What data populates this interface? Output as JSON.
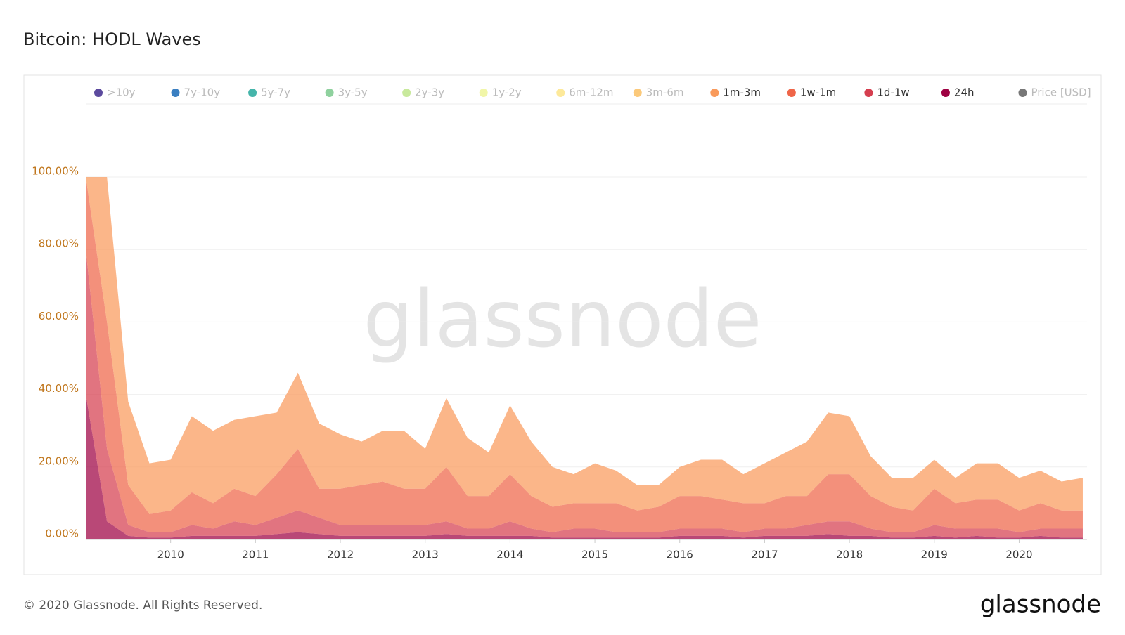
{
  "chart_data": {
    "type": "stacked_area",
    "title": "Bitcoin: HODL Waves",
    "x": [
      2009.0,
      2009.25,
      2009.5,
      2009.75,
      2010.0,
      2010.25,
      2010.5,
      2010.75,
      2011.0,
      2011.25,
      2011.5,
      2011.75,
      2012.0,
      2012.25,
      2012.5,
      2012.75,
      2013.0,
      2013.25,
      2013.5,
      2013.75,
      2014.0,
      2014.25,
      2014.5,
      2014.75,
      2015.0,
      2015.25,
      2015.5,
      2015.75,
      2016.0,
      2016.25,
      2016.5,
      2016.75,
      2017.0,
      2017.25,
      2017.5,
      2017.75,
      2018.0,
      2018.25,
      2018.5,
      2018.75,
      2019.0,
      2019.25,
      2019.5,
      2019.75,
      2020.0,
      2020.25,
      2020.5,
      2020.75
    ],
    "series": [
      {
        "name": ">10y",
        "color": "#5c4a9e",
        "visible": false
      },
      {
        "name": "7y-10y",
        "color": "#3a7fc1",
        "visible": false
      },
      {
        "name": "5y-7y",
        "color": "#45b5aa",
        "visible": false
      },
      {
        "name": "3y-5y",
        "color": "#8fd19e",
        "visible": false
      },
      {
        "name": "2y-3y",
        "color": "#c8e99c",
        "visible": false
      },
      {
        "name": "1y-2y",
        "color": "#f1f6a8",
        "visible": false
      },
      {
        "name": "6m-12m",
        "color": "#fde99a",
        "visible": false
      },
      {
        "name": "3m-6m",
        "color": "#fbc97a",
        "visible": false
      },
      {
        "name": "1m-3m",
        "color": "#f99a5b",
        "values": [
          0,
          40,
          23,
          14,
          14,
          21,
          20,
          19,
          22,
          17,
          21,
          18,
          15,
          12,
          14,
          16,
          11,
          19,
          16,
          12,
          19,
          15,
          11,
          8,
          11,
          9,
          7,
          6,
          8,
          10,
          11,
          8,
          11,
          12,
          15,
          17,
          16,
          11,
          8,
          9,
          8,
          7,
          10,
          10,
          9,
          9,
          8,
          9
        ]
      },
      {
        "name": "1w-1m",
        "color": "#ef6548",
        "values": [
          20,
          35,
          11,
          5,
          6,
          9,
          7,
          9,
          8,
          12,
          17,
          8,
          10,
          11,
          12,
          10,
          10,
          15,
          9,
          9,
          13,
          9,
          7,
          7,
          7,
          8,
          6,
          7,
          9,
          9,
          8,
          8,
          7,
          9,
          8,
          13,
          13,
          9,
          7,
          6,
          10,
          7,
          8,
          8,
          6,
          7,
          5,
          5
        ]
      },
      {
        "name": "1d-1w",
        "color": "#d53e4f",
        "values": [
          40,
          20,
          3,
          1.5,
          1.5,
          3,
          2,
          4,
          3,
          4.5,
          6,
          4.5,
          3,
          3,
          3,
          3,
          3,
          3.5,
          2,
          2,
          4,
          2,
          1.5,
          2.5,
          2.5,
          1.5,
          1.5,
          1.5,
          2,
          2,
          2,
          1.5,
          2,
          2,
          3,
          3.5,
          4,
          2,
          1.5,
          1.5,
          3,
          2.5,
          2,
          2.5,
          1.5,
          2,
          2.5,
          2.5
        ]
      },
      {
        "name": "24h",
        "color": "#9e0142",
        "values": [
          40,
          5,
          1,
          0.5,
          0.5,
          1,
          1,
          1,
          1,
          1.5,
          2,
          1.5,
          1,
          1,
          1,
          1,
          1,
          1.5,
          1,
          1,
          1,
          1,
          0.5,
          0.5,
          0.5,
          0.5,
          0.5,
          0.5,
          1,
          1,
          1,
          0.5,
          1,
          1,
          1,
          1.5,
          1,
          1,
          0.5,
          0.5,
          1,
          0.5,
          1,
          0.5,
          0.5,
          1,
          0.5,
          0.5
        ]
      },
      {
        "name": "Price [USD]",
        "color": "#777777",
        "visible": false
      }
    ],
    "xlim": [
      2009.0,
      2020.8
    ],
    "xticks": [
      2010,
      2011,
      2012,
      2013,
      2014,
      2015,
      2016,
      2017,
      2018,
      2019,
      2020
    ],
    "ylim": [
      0,
      100
    ],
    "yticks": [
      {
        "value": 0,
        "label": "0.00%"
      },
      {
        "value": 20,
        "label": "20.00%"
      },
      {
        "value": 40,
        "label": "40.00%"
      },
      {
        "value": 60,
        "label": "60.00%"
      },
      {
        "value": 80,
        "label": "80.00%"
      },
      {
        "value": 100,
        "label": "100.00%"
      }
    ],
    "grid": true
  },
  "watermark": "glassnode",
  "footer": "© 2020 Glassnode. All Rights Reserved.",
  "brand": "glassnode"
}
